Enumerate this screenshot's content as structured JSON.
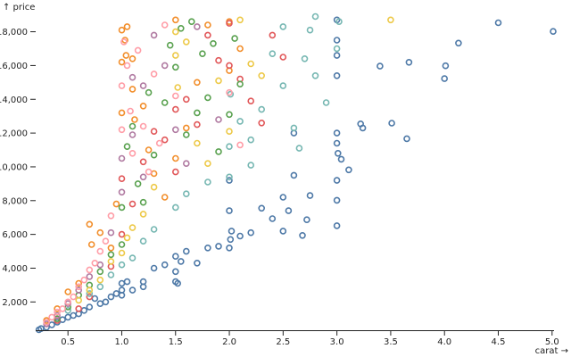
{
  "chart_data": {
    "type": "scatter",
    "xlabel": "carat →",
    "ylabel": "↑ price",
    "xlim": [
      0.2,
      5.01
    ],
    "ylim": [
      326,
      18823
    ],
    "x_ticks": [
      {
        "value": 0.5,
        "label": "0.5"
      },
      {
        "value": 1.0,
        "label": "1.0"
      },
      {
        "value": 1.5,
        "label": "1.5"
      },
      {
        "value": 2.0,
        "label": "2.0"
      },
      {
        "value": 2.5,
        "label": "2.5"
      },
      {
        "value": 3.0,
        "label": "3.0"
      },
      {
        "value": 3.5,
        "label": "3.5"
      },
      {
        "value": 4.0,
        "label": "4.0"
      },
      {
        "value": 4.5,
        "label": "4.5"
      },
      {
        "value": 5.0,
        "label": "5.0"
      }
    ],
    "y_ticks": [
      {
        "value": 2000,
        "label": "2,000"
      },
      {
        "value": 4000,
        "label": "4,000"
      },
      {
        "value": 6000,
        "label": "6,000"
      },
      {
        "value": 8000,
        "label": "8,000"
      },
      {
        "value": 10000,
        "label": "10,000"
      },
      {
        "value": 12000,
        "label": "12,000"
      },
      {
        "value": 14000,
        "label": "14,000"
      },
      {
        "value": 16000,
        "label": "16,000"
      },
      {
        "value": 18000,
        "label": "18,000"
      }
    ],
    "grid": false,
    "legend": "none",
    "marker": "hollow-circle",
    "series": [
      {
        "color": "#4e79a7",
        "points": [
          [
            5.01,
            18018
          ],
          [
            4.5,
            18531
          ],
          [
            4.13,
            17329
          ],
          [
            4.01,
            15984
          ],
          [
            4.0,
            15223
          ],
          [
            3.67,
            16193
          ],
          [
            3.51,
            12587
          ],
          [
            3.65,
            11668
          ],
          [
            3.4,
            15964
          ],
          [
            3.24,
            12300
          ],
          [
            3.22,
            12545
          ],
          [
            3.11,
            9823
          ],
          [
            3.04,
            10453
          ],
          [
            3.01,
            10800
          ],
          [
            3.0,
            12000
          ],
          [
            3.0,
            11400
          ],
          [
            3.0,
            9200
          ],
          [
            3.0,
            8020
          ],
          [
            3.0,
            6512
          ],
          [
            3.0,
            18700
          ],
          [
            3.0,
            17500
          ],
          [
            3.0,
            16600
          ],
          [
            3.0,
            15400
          ],
          [
            2.75,
            8300
          ],
          [
            2.72,
            6870
          ],
          [
            2.68,
            5940
          ],
          [
            2.6,
            9500
          ],
          [
            2.6,
            12000
          ],
          [
            2.55,
            7400
          ],
          [
            2.5,
            8200
          ],
          [
            2.5,
            6200
          ],
          [
            2.4,
            6930
          ],
          [
            2.3,
            7550
          ],
          [
            2.2,
            6100
          ],
          [
            2.1,
            5900
          ],
          [
            2.02,
            6200
          ],
          [
            2.01,
            5700
          ],
          [
            2.0,
            5200
          ],
          [
            2.0,
            7400
          ],
          [
            2.0,
            9200
          ],
          [
            1.9,
            5300
          ],
          [
            1.8,
            5200
          ],
          [
            1.7,
            4300
          ],
          [
            1.6,
            5000
          ],
          [
            1.55,
            4400
          ],
          [
            1.52,
            3100
          ],
          [
            1.5,
            3200
          ],
          [
            1.5,
            3800
          ],
          [
            1.5,
            4700
          ],
          [
            1.4,
            4200
          ],
          [
            1.3,
            4000
          ],
          [
            1.2,
            3200
          ],
          [
            1.2,
            2900
          ],
          [
            1.1,
            2700
          ],
          [
            1.05,
            3200
          ],
          [
            1.0,
            2400
          ],
          [
            1.0,
            2700
          ],
          [
            1.0,
            3100
          ],
          [
            0.95,
            2500
          ],
          [
            0.9,
            2300
          ],
          [
            0.85,
            2000
          ],
          [
            0.8,
            1900
          ],
          [
            0.75,
            2200
          ],
          [
            0.7,
            1700
          ],
          [
            0.65,
            1500
          ],
          [
            0.6,
            1300
          ],
          [
            0.55,
            1200
          ],
          [
            0.5,
            1100
          ],
          [
            0.45,
            950
          ],
          [
            0.4,
            800
          ],
          [
            0.35,
            650
          ],
          [
            0.3,
            500
          ],
          [
            0.25,
            420
          ],
          [
            0.23,
            350
          ]
        ]
      },
      {
        "color": "#f28e2b",
        "points": [
          [
            0.7,
            6600
          ],
          [
            0.72,
            5400
          ],
          [
            0.8,
            6100
          ],
          [
            0.9,
            5200
          ],
          [
            0.95,
            7800
          ],
          [
            1.0,
            13200
          ],
          [
            1.0,
            16200
          ],
          [
            1.0,
            18100
          ],
          [
            1.03,
            17500
          ],
          [
            1.04,
            16600
          ],
          [
            1.05,
            18300
          ],
          [
            1.1,
            16400
          ],
          [
            1.1,
            14600
          ],
          [
            1.12,
            12800
          ],
          [
            1.2,
            13600
          ],
          [
            1.25,
            11000
          ],
          [
            1.3,
            9600
          ],
          [
            1.4,
            8200
          ],
          [
            1.5,
            18700
          ],
          [
            1.5,
            10500
          ],
          [
            1.6,
            12300
          ],
          [
            1.7,
            15000
          ],
          [
            1.8,
            18400
          ],
          [
            2.0,
            18600
          ],
          [
            2.0,
            15700
          ],
          [
            2.1,
            17000
          ],
          [
            0.5,
            2600
          ],
          [
            0.6,
            3100
          ],
          [
            0.4,
            1600
          ],
          [
            0.3,
            900
          ]
        ]
      },
      {
        "color": "#e15759",
        "points": [
          [
            0.9,
            4100
          ],
          [
            1.0,
            9300
          ],
          [
            1.0,
            6000
          ],
          [
            1.1,
            7800
          ],
          [
            1.2,
            10300
          ],
          [
            1.3,
            12100
          ],
          [
            1.4,
            11600
          ],
          [
            1.5,
            13400
          ],
          [
            1.5,
            9700
          ],
          [
            1.6,
            14000
          ],
          [
            1.7,
            12500
          ],
          [
            1.8,
            17800
          ],
          [
            1.9,
            16300
          ],
          [
            2.0,
            18500
          ],
          [
            2.0,
            16000
          ],
          [
            2.1,
            15200
          ],
          [
            2.2,
            13900
          ],
          [
            2.3,
            12600
          ],
          [
            2.4,
            17800
          ],
          [
            2.5,
            16500
          ],
          [
            0.7,
            2300
          ],
          [
            0.6,
            1600
          ],
          [
            0.4,
            900
          ]
        ]
      },
      {
        "color": "#76b7b2",
        "points": [
          [
            2.0,
            11200
          ],
          [
            2.0,
            9400
          ],
          [
            2.01,
            14300
          ],
          [
            2.1,
            12700
          ],
          [
            2.2,
            10100
          ],
          [
            2.3,
            13400
          ],
          [
            2.4,
            16700
          ],
          [
            2.5,
            14800
          ],
          [
            2.6,
            12300
          ],
          [
            2.65,
            11100
          ],
          [
            2.7,
            16400
          ],
          [
            2.75,
            18100
          ],
          [
            2.8,
            15400
          ],
          [
            2.9,
            13800
          ],
          [
            3.0,
            17000
          ],
          [
            3.02,
            18600
          ],
          [
            2.8,
            18900
          ],
          [
            2.5,
            18300
          ],
          [
            2.2,
            11600
          ],
          [
            1.8,
            9100
          ],
          [
            1.6,
            8400
          ],
          [
            1.5,
            7600
          ],
          [
            1.3,
            6300
          ],
          [
            1.2,
            5600
          ],
          [
            1.1,
            4600
          ],
          [
            1.0,
            4200
          ],
          [
            0.9,
            3600
          ],
          [
            0.8,
            2900
          ],
          [
            0.7,
            2500
          ],
          [
            0.5,
            1500
          ]
        ]
      },
      {
        "color": "#59a14f",
        "points": [
          [
            1.0,
            5400
          ],
          [
            1.0,
            7600
          ],
          [
            1.05,
            11200
          ],
          [
            1.1,
            12400
          ],
          [
            1.15,
            9000
          ],
          [
            1.2,
            7900
          ],
          [
            1.25,
            14400
          ],
          [
            1.3,
            10700
          ],
          [
            1.4,
            13800
          ],
          [
            1.45,
            17200
          ],
          [
            1.5,
            15900
          ],
          [
            1.55,
            18200
          ],
          [
            1.6,
            11900
          ],
          [
            1.65,
            18600
          ],
          [
            1.7,
            13200
          ],
          [
            1.75,
            16700
          ],
          [
            1.8,
            14100
          ],
          [
            1.85,
            17300
          ],
          [
            1.9,
            10900
          ],
          [
            2.0,
            13100
          ],
          [
            2.05,
            17600
          ],
          [
            2.1,
            14900
          ],
          [
            0.9,
            4800
          ],
          [
            0.8,
            3800
          ],
          [
            0.7,
            3000
          ],
          [
            0.6,
            2400
          ],
          [
            0.5,
            1700
          ],
          [
            0.4,
            1000
          ]
        ]
      },
      {
        "color": "#edc948",
        "points": [
          [
            3.5,
            18700
          ],
          [
            1.5,
            18000
          ],
          [
            1.5,
            16600
          ],
          [
            1.52,
            14700
          ],
          [
            1.6,
            17400
          ],
          [
            1.7,
            11400
          ],
          [
            1.8,
            10200
          ],
          [
            1.9,
            15100
          ],
          [
            2.0,
            12100
          ],
          [
            2.1,
            18700
          ],
          [
            2.2,
            16100
          ],
          [
            2.3,
            15400
          ],
          [
            1.3,
            8800
          ],
          [
            1.2,
            7200
          ],
          [
            1.1,
            6400
          ],
          [
            1.05,
            5800
          ],
          [
            1.0,
            4900
          ],
          [
            0.9,
            4400
          ],
          [
            0.8,
            3300
          ],
          [
            0.7,
            2700
          ],
          [
            0.6,
            2100
          ]
        ]
      },
      {
        "color": "#b07aa1",
        "points": [
          [
            1.0,
            10500
          ],
          [
            1.0,
            8500
          ],
          [
            1.1,
            15300
          ],
          [
            1.2,
            14800
          ],
          [
            1.3,
            17800
          ],
          [
            1.4,
            16000
          ],
          [
            1.5,
            12200
          ],
          [
            1.6,
            10200
          ],
          [
            1.7,
            18300
          ],
          [
            1.9,
            12800
          ],
          [
            1.2,
            9400
          ],
          [
            1.1,
            11900
          ],
          [
            0.9,
            6100
          ],
          [
            0.8,
            4200
          ],
          [
            0.7,
            3500
          ],
          [
            0.6,
            2700
          ],
          [
            0.5,
            1900
          ],
          [
            0.4,
            1200
          ],
          [
            0.3,
            700
          ]
        ]
      },
      {
        "color": "#ff9da7",
        "points": [
          [
            1.0,
            12200
          ],
          [
            1.0,
            14800
          ],
          [
            1.02,
            17400
          ],
          [
            1.05,
            16000
          ],
          [
            1.08,
            13300
          ],
          [
            1.1,
            10800
          ],
          [
            1.15,
            16900
          ],
          [
            1.2,
            12400
          ],
          [
            1.25,
            9700
          ],
          [
            1.3,
            15500
          ],
          [
            1.35,
            11400
          ],
          [
            1.4,
            18400
          ],
          [
            1.5,
            14200
          ],
          [
            2.0,
            14400
          ],
          [
            2.1,
            11300
          ],
          [
            0.9,
            7100
          ],
          [
            0.85,
            5600
          ],
          [
            0.8,
            5000
          ],
          [
            0.75,
            4300
          ],
          [
            0.7,
            3900
          ],
          [
            0.65,
            3300
          ],
          [
            0.6,
            2900
          ],
          [
            0.55,
            2300
          ],
          [
            0.5,
            2000
          ],
          [
            0.45,
            1600
          ],
          [
            0.4,
            1400
          ],
          [
            0.35,
            1100
          ],
          [
            0.3,
            800
          ]
        ]
      }
    ]
  }
}
